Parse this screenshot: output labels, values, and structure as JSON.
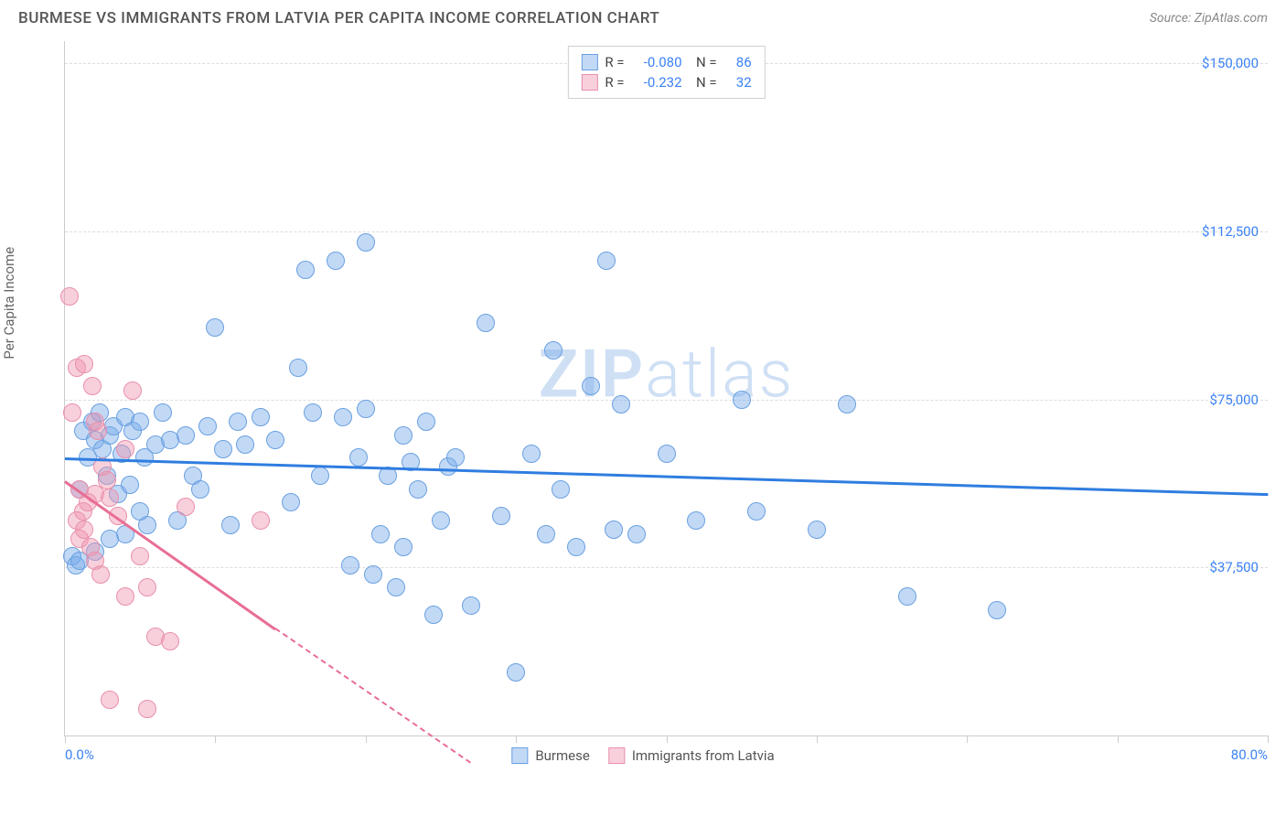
{
  "header": {
    "title": "BURMESE VS IMMIGRANTS FROM LATVIA PER CAPITA INCOME CORRELATION CHART",
    "source": "Source: ZipAtlas.com"
  },
  "watermark": {
    "bold": "ZIP",
    "light": "atlas"
  },
  "chart": {
    "type": "scatter",
    "y_label": "Per Capita Income",
    "x_min": 0.0,
    "x_max": 80.0,
    "y_min": 0,
    "y_max": 155000,
    "x_tick_labels": [
      "0.0%",
      "80.0%"
    ],
    "y_ticks": [
      {
        "value": 37500,
        "label": "$37,500"
      },
      {
        "value": 75000,
        "label": "$75,000"
      },
      {
        "value": 112500,
        "label": "$112,500"
      },
      {
        "value": 150000,
        "label": "$150,000"
      }
    ],
    "x_minor_ticks": [
      0,
      10,
      20,
      30,
      40,
      50,
      60,
      70,
      80
    ],
    "grid_color": "#dddddd",
    "background_color": "#ffffff",
    "series": [
      {
        "name": "Burmese",
        "fill": "rgba(120,170,235,0.45)",
        "stroke": "#6aa0e0",
        "line_color": "#2f7de0",
        "R": "-0.080",
        "N": "86",
        "trend": {
          "x1": 0,
          "y1": 62000,
          "x2": 80,
          "y2": 54000
        },
        "marker_radius": 10,
        "points": [
          [
            0.5,
            40000
          ],
          [
            0.7,
            38000
          ],
          [
            1.0,
            55000
          ],
          [
            1.2,
            68000
          ],
          [
            1.5,
            62000
          ],
          [
            1.8,
            70000
          ],
          [
            2.0,
            66000
          ],
          [
            2.3,
            72000
          ],
          [
            2.5,
            64000
          ],
          [
            2.8,
            58000
          ],
          [
            3.0,
            67000
          ],
          [
            3.2,
            69000
          ],
          [
            3.5,
            54000
          ],
          [
            3.8,
            63000
          ],
          [
            4.0,
            71000
          ],
          [
            4.3,
            56000
          ],
          [
            4.5,
            68000
          ],
          [
            5.0,
            70000
          ],
          [
            5.3,
            62000
          ],
          [
            5.5,
            47000
          ],
          [
            6.0,
            65000
          ],
          [
            6.5,
            72000
          ],
          [
            7.0,
            66000
          ],
          [
            7.5,
            48000
          ],
          [
            8.0,
            67000
          ],
          [
            8.5,
            58000
          ],
          [
            9.0,
            55000
          ],
          [
            9.5,
            69000
          ],
          [
            10.0,
            91000
          ],
          [
            10.5,
            64000
          ],
          [
            11.0,
            47000
          ],
          [
            11.5,
            70000
          ],
          [
            12.0,
            65000
          ],
          [
            13.0,
            71000
          ],
          [
            14.0,
            66000
          ],
          [
            15.0,
            52000
          ],
          [
            15.5,
            82000
          ],
          [
            16.0,
            104000
          ],
          [
            16.5,
            72000
          ],
          [
            17.0,
            58000
          ],
          [
            18.0,
            106000
          ],
          [
            18.5,
            71000
          ],
          [
            19.0,
            38000
          ],
          [
            19.5,
            62000
          ],
          [
            20.0,
            73000
          ],
          [
            20.0,
            110000
          ],
          [
            20.5,
            36000
          ],
          [
            21.0,
            45000
          ],
          [
            21.5,
            58000
          ],
          [
            22.0,
            33000
          ],
          [
            22.5,
            67000
          ],
          [
            22.5,
            42000
          ],
          [
            23.0,
            61000
          ],
          [
            23.5,
            55000
          ],
          [
            24.0,
            70000
          ],
          [
            24.5,
            27000
          ],
          [
            25.0,
            48000
          ],
          [
            25.5,
            60000
          ],
          [
            26.0,
            62000
          ],
          [
            27.0,
            29000
          ],
          [
            28.0,
            92000
          ],
          [
            29.0,
            49000
          ],
          [
            30.0,
            14000
          ],
          [
            31.0,
            63000
          ],
          [
            32.0,
            45000
          ],
          [
            32.5,
            86000
          ],
          [
            33.0,
            55000
          ],
          [
            34.0,
            42000
          ],
          [
            35.0,
            78000
          ],
          [
            36.0,
            106000
          ],
          [
            36.5,
            46000
          ],
          [
            37.0,
            74000
          ],
          [
            38.0,
            45000
          ],
          [
            40.0,
            63000
          ],
          [
            42.0,
            48000
          ],
          [
            45.0,
            75000
          ],
          [
            46.0,
            50000
          ],
          [
            50.0,
            46000
          ],
          [
            52.0,
            74000
          ],
          [
            56.0,
            31000
          ],
          [
            62.0,
            28000
          ],
          [
            1.0,
            39000
          ],
          [
            2.0,
            41000
          ],
          [
            3.0,
            44000
          ],
          [
            4.0,
            45000
          ],
          [
            5.0,
            50000
          ]
        ]
      },
      {
        "name": "Immigrants from Latvia",
        "fill": "rgba(240,150,175,0.45)",
        "stroke": "#e890ac",
        "line_color": "#e86e94",
        "R": "-0.232",
        "N": "32",
        "trend": {
          "x1": 0,
          "y1": 57000,
          "x2": 14,
          "y2": 24000
        },
        "trend_dash": {
          "x1": 14,
          "y1": 24000,
          "x2": 27,
          "y2": -6000
        },
        "marker_radius": 10,
        "points": [
          [
            0.3,
            98000
          ],
          [
            0.5,
            72000
          ],
          [
            0.8,
            82000
          ],
          [
            1.0,
            55000
          ],
          [
            1.2,
            50000
          ],
          [
            1.3,
            83000
          ],
          [
            1.5,
            52000
          ],
          [
            1.8,
            78000
          ],
          [
            2.0,
            54000
          ],
          [
            2.2,
            68000
          ],
          [
            2.5,
            60000
          ],
          [
            2.8,
            57000
          ],
          [
            3.0,
            53000
          ],
          [
            3.5,
            49000
          ],
          [
            4.0,
            64000
          ],
          [
            4.5,
            77000
          ],
          [
            5.0,
            40000
          ],
          [
            5.5,
            33000
          ],
          [
            0.8,
            48000
          ],
          [
            1.0,
            44000
          ],
          [
            1.3,
            46000
          ],
          [
            1.7,
            42000
          ],
          [
            2.0,
            39000
          ],
          [
            2.4,
            36000
          ],
          [
            3.0,
            8000
          ],
          [
            4.0,
            31000
          ],
          [
            5.5,
            6000
          ],
          [
            6.0,
            22000
          ],
          [
            7.0,
            21000
          ],
          [
            8.0,
            51000
          ],
          [
            13.0,
            48000
          ],
          [
            2.0,
            70000
          ]
        ]
      }
    ],
    "legend_bottom": [
      {
        "swatch_fill": "rgba(120,170,235,0.45)",
        "swatch_stroke": "#6aa0e0",
        "label": "Burmese"
      },
      {
        "swatch_fill": "rgba(240,150,175,0.45)",
        "swatch_stroke": "#e890ac",
        "label": "Immigrants from Latvia"
      }
    ]
  }
}
